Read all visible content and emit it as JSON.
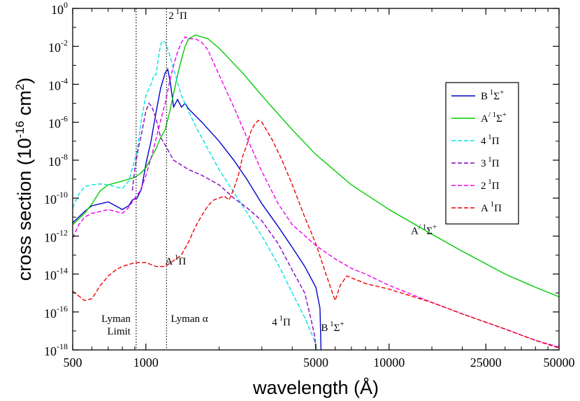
{
  "chart_data": {
    "type": "line",
    "xlabel": "wavelength (Å)",
    "ylabel": "cross section (10",
    "ylabel_exp": "-16",
    "ylabel_unit": " cm",
    "ylabel_unit_exp": "2",
    "ylabel_close": ")",
    "xscale": "log",
    "yscale": "log",
    "xlim": [
      500,
      50000
    ],
    "ylim": [
      -18,
      0
    ],
    "x_ticks": [
      {
        "value": 500,
        "label": "500"
      },
      {
        "value": 1000,
        "label": "1000"
      },
      {
        "value": 5000,
        "label": "5000"
      },
      {
        "value": 10000,
        "label": "10000"
      },
      {
        "value": 25000,
        "label": "25000"
      },
      {
        "value": 50000,
        "label": "50000"
      }
    ],
    "y_ticks": [
      {
        "exp": 0,
        "base": "10",
        "sup": "0"
      },
      {
        "exp": -2,
        "base": "10",
        "sup": "-2"
      },
      {
        "exp": -4,
        "base": "10",
        "sup": "-4"
      },
      {
        "exp": -6,
        "base": "10",
        "sup": "-6"
      },
      {
        "exp": -8,
        "base": "10",
        "sup": "-8"
      },
      {
        "exp": -10,
        "base": "10",
        "sup": "-10"
      },
      {
        "exp": -12,
        "base": "10",
        "sup": "-12"
      },
      {
        "exp": -14,
        "base": "10",
        "sup": "-14"
      },
      {
        "exp": -16,
        "base": "10",
        "sup": "-16"
      },
      {
        "exp": -18,
        "base": "10",
        "sup": "-18"
      }
    ],
    "vlines": [
      {
        "x": 912,
        "label_lines": [
          "Lyman",
          "Limit"
        ]
      },
      {
        "x": 1216,
        "label_lines": [
          "Lyman α"
        ]
      }
    ],
    "legend_position": "top-right",
    "series": [
      {
        "name": "B",
        "sup1": "1",
        "sym": "Σ",
        "sup2": "+",
        "color": "#0000cc",
        "dash": "solid",
        "points": [
          [
            500,
            -11.3
          ],
          [
            560,
            -10.7
          ],
          [
            600,
            -10.4
          ],
          [
            650,
            -10.3
          ],
          [
            700,
            -10.2
          ],
          [
            750,
            -10.4
          ],
          [
            800,
            -10.6
          ],
          [
            850,
            -10.4
          ],
          [
            880,
            -10.1
          ],
          [
            920,
            -10.0
          ],
          [
            960,
            -9.5
          ],
          [
            1000,
            -8.2
          ],
          [
            1050,
            -7.0
          ],
          [
            1100,
            -5.5
          ],
          [
            1150,
            -4.2
          ],
          [
            1200,
            -3.4
          ],
          [
            1230,
            -3.2
          ],
          [
            1260,
            -3.9
          ],
          [
            1300,
            -5.2
          ],
          [
            1350,
            -4.8
          ],
          [
            1400,
            -5.2
          ],
          [
            1450,
            -5.0
          ],
          [
            1500,
            -5.3
          ],
          [
            1700,
            -6.0
          ],
          [
            2000,
            -7.0
          ],
          [
            2300,
            -8.0
          ],
          [
            2600,
            -9.0
          ],
          [
            3000,
            -10.3
          ],
          [
            3500,
            -11.5
          ],
          [
            4000,
            -12.6
          ],
          [
            4500,
            -13.6
          ],
          [
            5000,
            -14.7
          ],
          [
            5200,
            -15.8
          ],
          [
            5250,
            -18
          ]
        ]
      },
      {
        "name": "A",
        "prime": "/",
        "sup1": "1",
        "sym": "Σ",
        "sup2": "+",
        "color": "#00cc00",
        "dash": "solid",
        "points": [
          [
            500,
            -11.4
          ],
          [
            560,
            -10.8
          ],
          [
            600,
            -10.3
          ],
          [
            650,
            -9.6
          ],
          [
            700,
            -9.3
          ],
          [
            750,
            -9.2
          ],
          [
            800,
            -9.1
          ],
          [
            850,
            -9.0
          ],
          [
            900,
            -8.9
          ],
          [
            950,
            -8.7
          ],
          [
            1000,
            -8.4
          ],
          [
            1050,
            -7.9
          ],
          [
            1100,
            -7.4
          ],
          [
            1150,
            -6.8
          ],
          [
            1200,
            -6.4
          ],
          [
            1250,
            -5.5
          ],
          [
            1300,
            -4.5
          ],
          [
            1350,
            -3.5
          ],
          [
            1400,
            -2.7
          ],
          [
            1450,
            -2.0
          ],
          [
            1500,
            -1.6
          ],
          [
            1600,
            -1.4
          ],
          [
            1800,
            -1.6
          ],
          [
            2000,
            -2.1
          ],
          [
            2500,
            -3.4
          ],
          [
            3000,
            -4.6
          ],
          [
            4000,
            -6.4
          ],
          [
            5000,
            -7.7
          ],
          [
            7000,
            -9.3
          ],
          [
            10000,
            -10.6
          ],
          [
            15000,
            -11.9
          ],
          [
            20000,
            -12.8
          ],
          [
            30000,
            -14.0
          ],
          [
            40000,
            -14.7
          ],
          [
            50000,
            -15.2
          ]
        ]
      },
      {
        "name": "4",
        "sup1": "1",
        "sym": "Π",
        "sup2": "",
        "color": "#00e0e0",
        "dash": "6,3",
        "points": [
          [
            500,
            -10.5
          ],
          [
            530,
            -9.8
          ],
          [
            560,
            -9.4
          ],
          [
            600,
            -9.3
          ],
          [
            650,
            -9.25
          ],
          [
            700,
            -9.3
          ],
          [
            750,
            -9.4
          ],
          [
            800,
            -9.5
          ],
          [
            850,
            -9.1
          ],
          [
            900,
            -8.0
          ],
          [
            920,
            -7.5
          ],
          [
            960,
            -5.8
          ],
          [
            1000,
            -4.6
          ],
          [
            1050,
            -4.0
          ],
          [
            1080,
            -3.5
          ],
          [
            1100,
            -3.5
          ],
          [
            1130,
            -2.5
          ],
          [
            1150,
            -1.9
          ],
          [
            1170,
            -1.7
          ],
          [
            1200,
            -1.8
          ],
          [
            1250,
            -2.4
          ],
          [
            1300,
            -3.2
          ],
          [
            1400,
            -4.6
          ],
          [
            1600,
            -6.2
          ],
          [
            2000,
            -8.5
          ],
          [
            2500,
            -10.4
          ],
          [
            3000,
            -12.0
          ],
          [
            3500,
            -13.5
          ],
          [
            4000,
            -15.0
          ],
          [
            4500,
            -16.3
          ],
          [
            4900,
            -17.4
          ],
          [
            5050,
            -18
          ]
        ]
      },
      {
        "name": "3",
        "sup1": "1",
        "sym": "Π",
        "sup2": "",
        "color": "#8800cc",
        "dash": "6,3",
        "points": [
          [
            880,
            -9.6
          ],
          [
            900,
            -8.5
          ],
          [
            930,
            -7.4
          ],
          [
            960,
            -6.6
          ],
          [
            1000,
            -5.4
          ],
          [
            1030,
            -5.0
          ],
          [
            1060,
            -5.2
          ],
          [
            1100,
            -5.8
          ],
          [
            1150,
            -6.8
          ],
          [
            1200,
            -7.2
          ],
          [
            1300,
            -8.0
          ],
          [
            1500,
            -8.5
          ],
          [
            1700,
            -8.8
          ],
          [
            2000,
            -9.3
          ],
          [
            2300,
            -10.0
          ],
          [
            2600,
            -10.5
          ],
          [
            3000,
            -11.2
          ],
          [
            3500,
            -12.4
          ],
          [
            4000,
            -13.8
          ],
          [
            4500,
            -15.0
          ],
          [
            4800,
            -16.5
          ],
          [
            4950,
            -17.3
          ],
          [
            5000,
            -18
          ]
        ]
      },
      {
        "name": "2",
        "sup1": "1",
        "sym": "Π",
        "sup2": "",
        "color": "#ee00ee",
        "dash": "6,3",
        "points": [
          [
            500,
            -12.1
          ],
          [
            530,
            -11.4
          ],
          [
            560,
            -11.0
          ],
          [
            600,
            -10.8
          ],
          [
            650,
            -10.7
          ],
          [
            700,
            -10.6
          ],
          [
            750,
            -10.7
          ],
          [
            800,
            -10.8
          ],
          [
            850,
            -10.5
          ],
          [
            900,
            -10.0
          ],
          [
            950,
            -9.6
          ],
          [
            1000,
            -8.8
          ],
          [
            1050,
            -7.9
          ],
          [
            1100,
            -6.9
          ],
          [
            1150,
            -5.9
          ],
          [
            1200,
            -5.0
          ],
          [
            1250,
            -3.9
          ],
          [
            1300,
            -3.0
          ],
          [
            1350,
            -2.3
          ],
          [
            1400,
            -1.8
          ],
          [
            1450,
            -1.5
          ],
          [
            1500,
            -1.6
          ],
          [
            1600,
            -1.6
          ],
          [
            1700,
            -1.8
          ],
          [
            1800,
            -2.2
          ],
          [
            2000,
            -3.5
          ],
          [
            2300,
            -5.2
          ],
          [
            2600,
            -6.8
          ],
          [
            3000,
            -8.6
          ],
          [
            3500,
            -10.3
          ],
          [
            4000,
            -11.4
          ],
          [
            5000,
            -12.5
          ],
          [
            6000,
            -13.2
          ],
          [
            7000,
            -13.7
          ],
          [
            8000,
            -14.0
          ],
          [
            10000,
            -14.6
          ],
          [
            15000,
            -15.5
          ],
          [
            20000,
            -16.1
          ],
          [
            30000,
            -16.9
          ],
          [
            40000,
            -17.5
          ],
          [
            50000,
            -17.85
          ]
        ]
      },
      {
        "name": "A",
        "sup1": "1",
        "sym": "Π",
        "sup2": "",
        "color": "#ee0000",
        "dash": "6,3",
        "points": [
          [
            500,
            -14.9
          ],
          [
            560,
            -15.4
          ],
          [
            600,
            -15.3
          ],
          [
            650,
            -14.6
          ],
          [
            700,
            -14.1
          ],
          [
            750,
            -13.8
          ],
          [
            800,
            -13.6
          ],
          [
            850,
            -13.5
          ],
          [
            900,
            -13.4
          ],
          [
            950,
            -13.4
          ],
          [
            1000,
            -13.4
          ],
          [
            1050,
            -13.5
          ],
          [
            1100,
            -13.6
          ],
          [
            1150,
            -13.6
          ],
          [
            1200,
            -13.6
          ],
          [
            1300,
            -13.3
          ],
          [
            1400,
            -13.0
          ],
          [
            1500,
            -12.3
          ],
          [
            1600,
            -11.5
          ],
          [
            1700,
            -10.9
          ],
          [
            1800,
            -10.4
          ],
          [
            1900,
            -10.1
          ],
          [
            2000,
            -10.0
          ],
          [
            2100,
            -9.9
          ],
          [
            2200,
            -10.1
          ],
          [
            2300,
            -9.5
          ],
          [
            2400,
            -8.8
          ],
          [
            2500,
            -7.8
          ],
          [
            2600,
            -7.2
          ],
          [
            2700,
            -6.5
          ],
          [
            2800,
            -6.1
          ],
          [
            2900,
            -5.9
          ],
          [
            3000,
            -6.0
          ],
          [
            3300,
            -6.9
          ],
          [
            3600,
            -7.9
          ],
          [
            4000,
            -9.3
          ],
          [
            4500,
            -11.0
          ],
          [
            5000,
            -12.4
          ],
          [
            5500,
            -14.0
          ],
          [
            6000,
            -15.4
          ],
          [
            6300,
            -14.6
          ],
          [
            6700,
            -14.1
          ],
          [
            7000,
            -14.2
          ],
          [
            8000,
            -14.5
          ],
          [
            10000,
            -14.8
          ],
          [
            15000,
            -15.5
          ],
          [
            20000,
            -16.1
          ],
          [
            30000,
            -16.9
          ],
          [
            40000,
            -17.5
          ],
          [
            50000,
            -17.9
          ]
        ]
      }
    ],
    "annotations": [
      {
        "x": 1240,
        "exp": -0.55,
        "text": "2",
        "sup": "1",
        "sym": "Π"
      },
      {
        "x": 1200,
        "exp": -13.5,
        "text": "A",
        "sup": "1",
        "sym": "Π"
      },
      {
        "x": 3300,
        "exp": -16.7,
        "text": "4",
        "sup": "1",
        "sym": "Π"
      },
      {
        "x": 5250,
        "exp": -17.0,
        "text": "B",
        "sup": "1",
        "sym": "Σ",
        "sup2": "+"
      },
      {
        "x": 12300,
        "exp": -11.9,
        "text": "A",
        "prime": "/",
        "sup": "1",
        "sym": "Σ",
        "sup2": "+"
      }
    ]
  }
}
